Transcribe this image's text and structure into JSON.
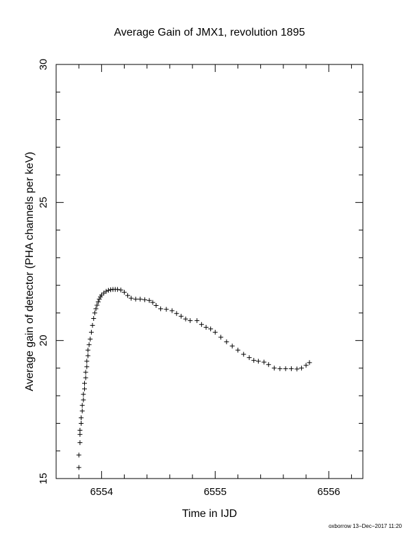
{
  "chart_data": {
    "type": "scatter",
    "title": "Average Gain of JMX1, revolution 1895",
    "xlabel": "Time in IJD",
    "ylabel": "Average gain of detector (PHA channels per keV)",
    "xlim": [
      6553.6,
      6556.3
    ],
    "ylim": [
      15,
      30
    ],
    "xticks": [
      6554,
      6555,
      6556
    ],
    "xtick_labels": [
      "6554",
      "6555",
      "6556"
    ],
    "x_minor_step": 0.2,
    "yticks": [
      15,
      20,
      25,
      30
    ],
    "ytick_labels": [
      "15",
      "20",
      "25",
      "30"
    ],
    "y_minor_step": 1,
    "marker": "+",
    "marker_color": "#000000",
    "grid": false,
    "legend": "none",
    "series": [
      {
        "points": [
          [
            6553.8,
            15.4
          ],
          [
            6553.8,
            15.85
          ],
          [
            6553.81,
            16.3
          ],
          [
            6553.81,
            16.6
          ],
          [
            6553.81,
            16.75
          ],
          [
            6553.82,
            17.0
          ],
          [
            6553.82,
            17.2
          ],
          [
            6553.83,
            17.45
          ],
          [
            6553.83,
            17.65
          ],
          [
            6553.84,
            17.85
          ],
          [
            6553.84,
            18.05
          ],
          [
            6553.85,
            18.25
          ],
          [
            6553.85,
            18.45
          ],
          [
            6553.86,
            18.65
          ],
          [
            6553.86,
            18.85
          ],
          [
            6553.87,
            19.05
          ],
          [
            6553.87,
            19.25
          ],
          [
            6553.88,
            19.45
          ],
          [
            6553.88,
            19.65
          ],
          [
            6553.89,
            19.85
          ],
          [
            6553.9,
            20.05
          ],
          [
            6553.91,
            20.3
          ],
          [
            6553.92,
            20.55
          ],
          [
            6553.93,
            20.8
          ],
          [
            6553.94,
            21.0
          ],
          [
            6553.95,
            21.15
          ],
          [
            6553.96,
            21.28
          ],
          [
            6553.97,
            21.4
          ],
          [
            6553.98,
            21.5
          ],
          [
            6553.99,
            21.58
          ],
          [
            6554.0,
            21.65
          ],
          [
            6554.02,
            21.72
          ],
          [
            6554.04,
            21.78
          ],
          [
            6554.06,
            21.82
          ],
          [
            6554.08,
            21.84
          ],
          [
            6554.1,
            21.85
          ],
          [
            6554.12,
            21.85
          ],
          [
            6554.14,
            21.85
          ],
          [
            6554.17,
            21.83
          ],
          [
            6554.2,
            21.75
          ],
          [
            6554.23,
            21.63
          ],
          [
            6554.26,
            21.53
          ],
          [
            6554.3,
            21.5
          ],
          [
            6554.34,
            21.5
          ],
          [
            6554.38,
            21.48
          ],
          [
            6554.42,
            21.45
          ],
          [
            6554.45,
            21.38
          ],
          [
            6554.48,
            21.27
          ],
          [
            6554.52,
            21.15
          ],
          [
            6554.57,
            21.13
          ],
          [
            6554.62,
            21.08
          ],
          [
            6554.66,
            20.98
          ],
          [
            6554.7,
            20.88
          ],
          [
            6554.74,
            20.78
          ],
          [
            6554.78,
            20.72
          ],
          [
            6554.84,
            20.72
          ],
          [
            6554.88,
            20.58
          ],
          [
            6554.92,
            20.48
          ],
          [
            6554.96,
            20.42
          ],
          [
            6555.0,
            20.3
          ],
          [
            6555.05,
            20.12
          ],
          [
            6555.1,
            19.95
          ],
          [
            6555.15,
            19.8
          ],
          [
            6555.2,
            19.65
          ],
          [
            6555.25,
            19.5
          ],
          [
            6555.3,
            19.38
          ],
          [
            6555.34,
            19.28
          ],
          [
            6555.38,
            19.25
          ],
          [
            6555.43,
            19.22
          ],
          [
            6555.47,
            19.13
          ],
          [
            6555.52,
            19.0
          ],
          [
            6555.57,
            18.98
          ],
          [
            6555.62,
            18.98
          ],
          [
            6555.67,
            18.98
          ],
          [
            6555.72,
            18.97
          ],
          [
            6555.76,
            19.0
          ],
          [
            6555.8,
            19.1
          ],
          [
            6555.83,
            19.2
          ]
        ]
      }
    ]
  },
  "footer": {
    "stamp": "oxborrow 13−Dec−2017 11:20"
  }
}
